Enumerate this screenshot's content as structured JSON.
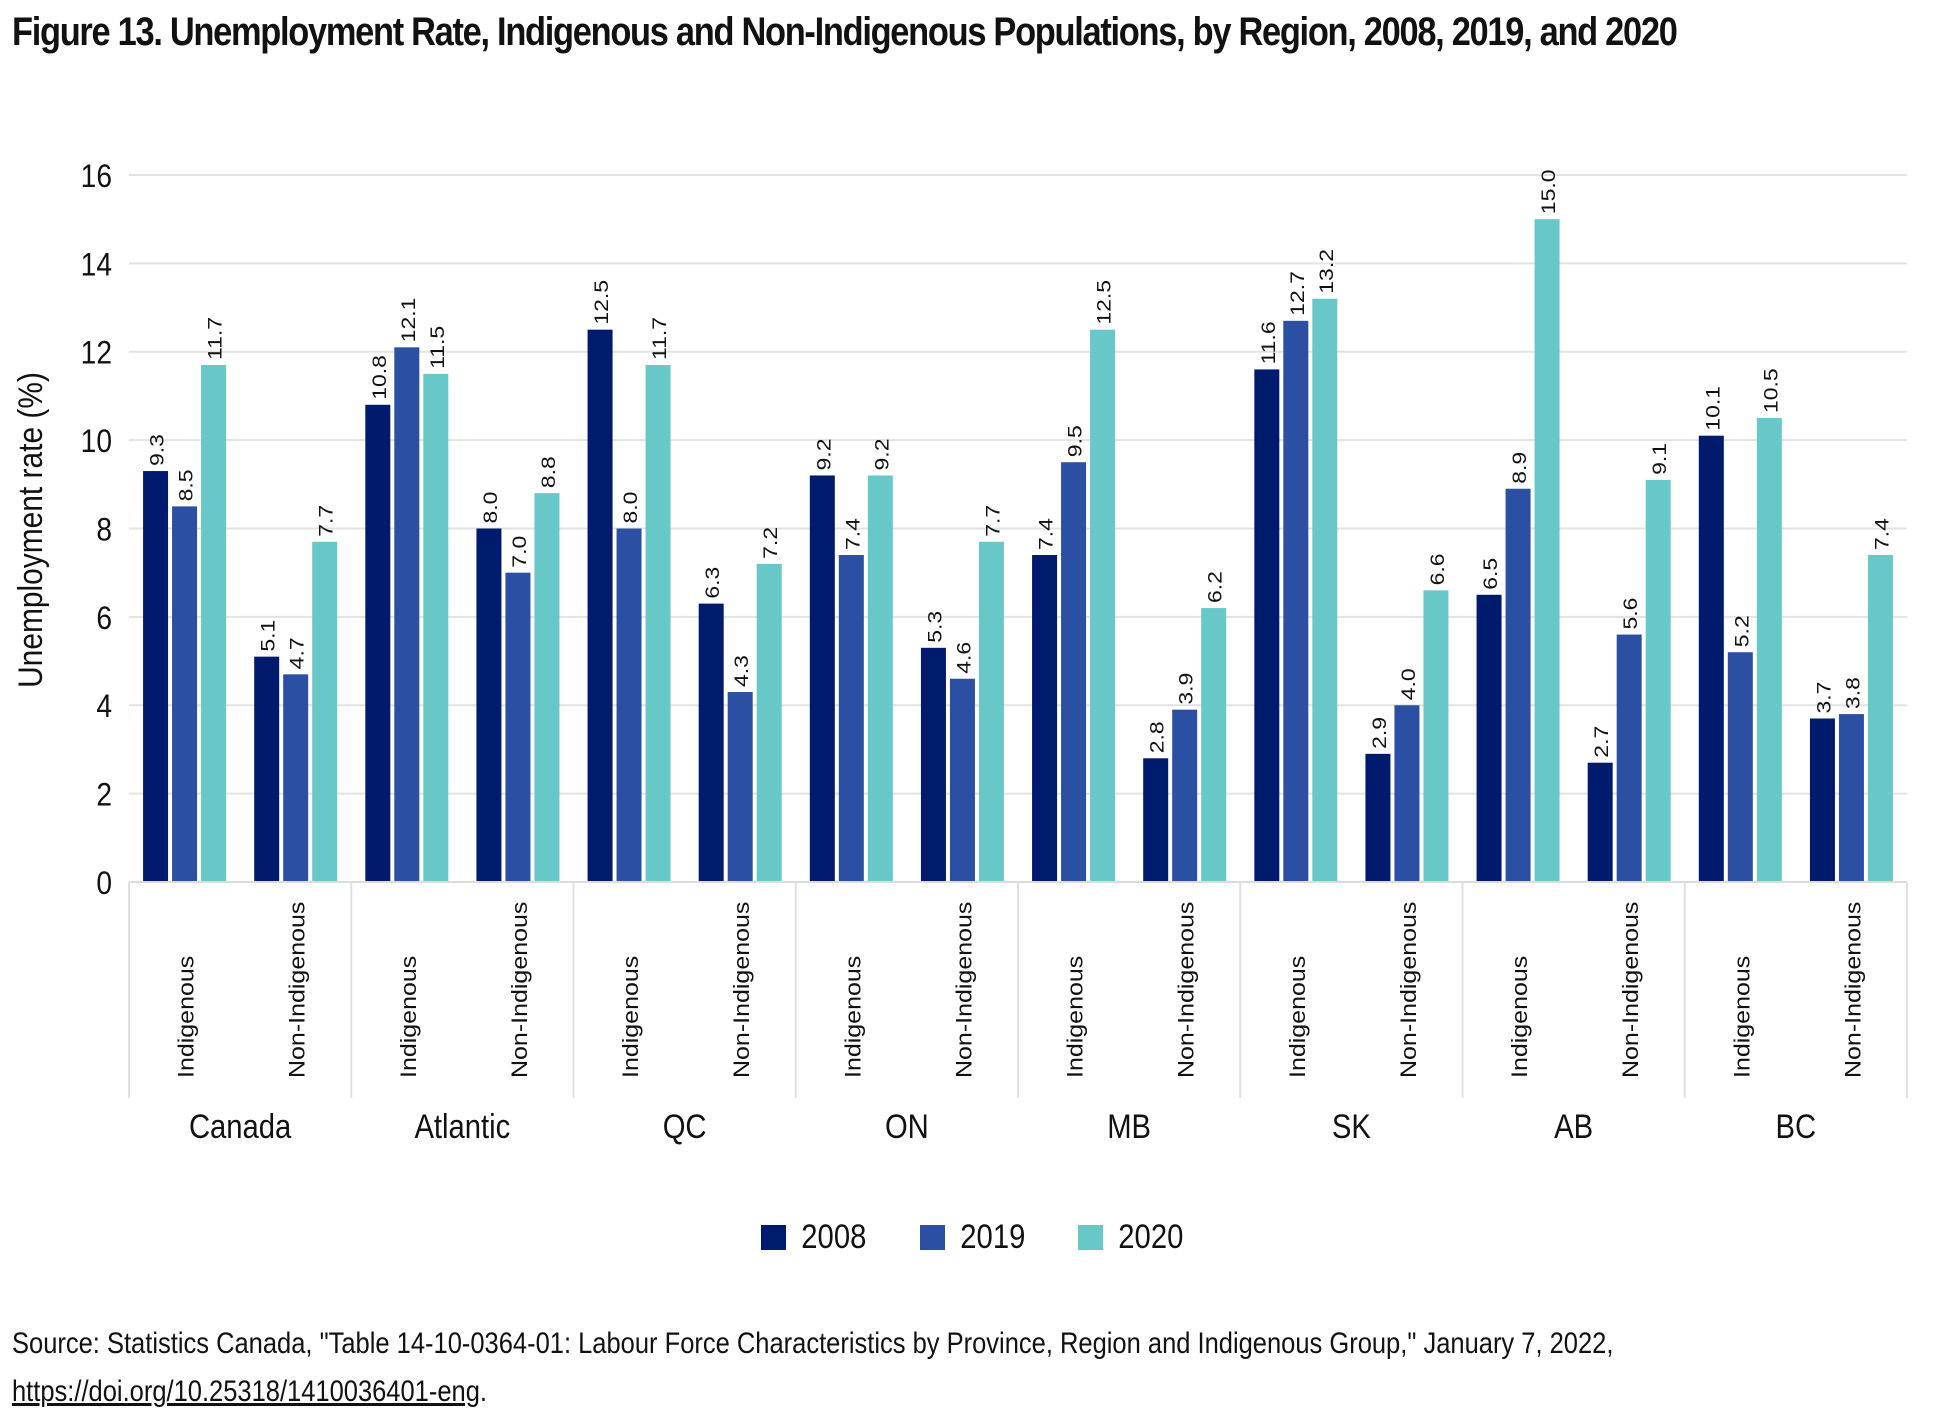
{
  "title": "Figure 13. Unemployment Rate, Indigenous and Non-Indigenous Populations, by Region, 2008, 2019, and 2020",
  "source": {
    "text": "Source: Statistics Canada, \"Table 14-10-0364-01: Labour Force Characteristics by Province, Region and Indigenous Group,\" January 7, 2022, ",
    "link": "https://doi.org/10.25318/1410036401-eng",
    "suffix": "."
  },
  "chart_data": {
    "type": "bar",
    "title": "Figure 13. Unemployment Rate, Indigenous and Non-Indigenous Populations, by Region, 2008, 2019, and 2020",
    "ylabel": "Unemployment rate (%)",
    "xlabel": "",
    "ylim": [
      0,
      16
    ],
    "yticks": [
      0,
      2,
      4,
      6,
      8,
      10,
      12,
      14,
      16
    ],
    "grid": true,
    "legend_position": "bottom",
    "regions": [
      "Canada",
      "Atlantic",
      "QC",
      "ON",
      "MB",
      "SK",
      "AB",
      "BC"
    ],
    "groups": [
      "Indigenous",
      "Non-Indigenous"
    ],
    "series": [
      {
        "name": "2008",
        "color": "#001a6e",
        "values": [
          9.3,
          5.1,
          10.8,
          8.0,
          12.5,
          6.3,
          9.2,
          5.3,
          7.4,
          2.8,
          11.6,
          2.9,
          6.5,
          2.7,
          10.1,
          3.7
        ]
      },
      {
        "name": "2019",
        "color": "#2b4fa3",
        "values": [
          8.5,
          4.7,
          12.1,
          7.0,
          8.0,
          4.3,
          7.4,
          4.6,
          9.5,
          3.9,
          12.7,
          4.0,
          8.9,
          5.6,
          5.2,
          3.8
        ]
      },
      {
        "name": "2020",
        "color": "#68c8c8",
        "values": [
          11.7,
          7.7,
          11.5,
          8.8,
          11.7,
          7.2,
          9.2,
          7.7,
          12.5,
          6.2,
          13.2,
          6.6,
          15.0,
          9.1,
          10.5,
          7.4
        ]
      }
    ]
  }
}
